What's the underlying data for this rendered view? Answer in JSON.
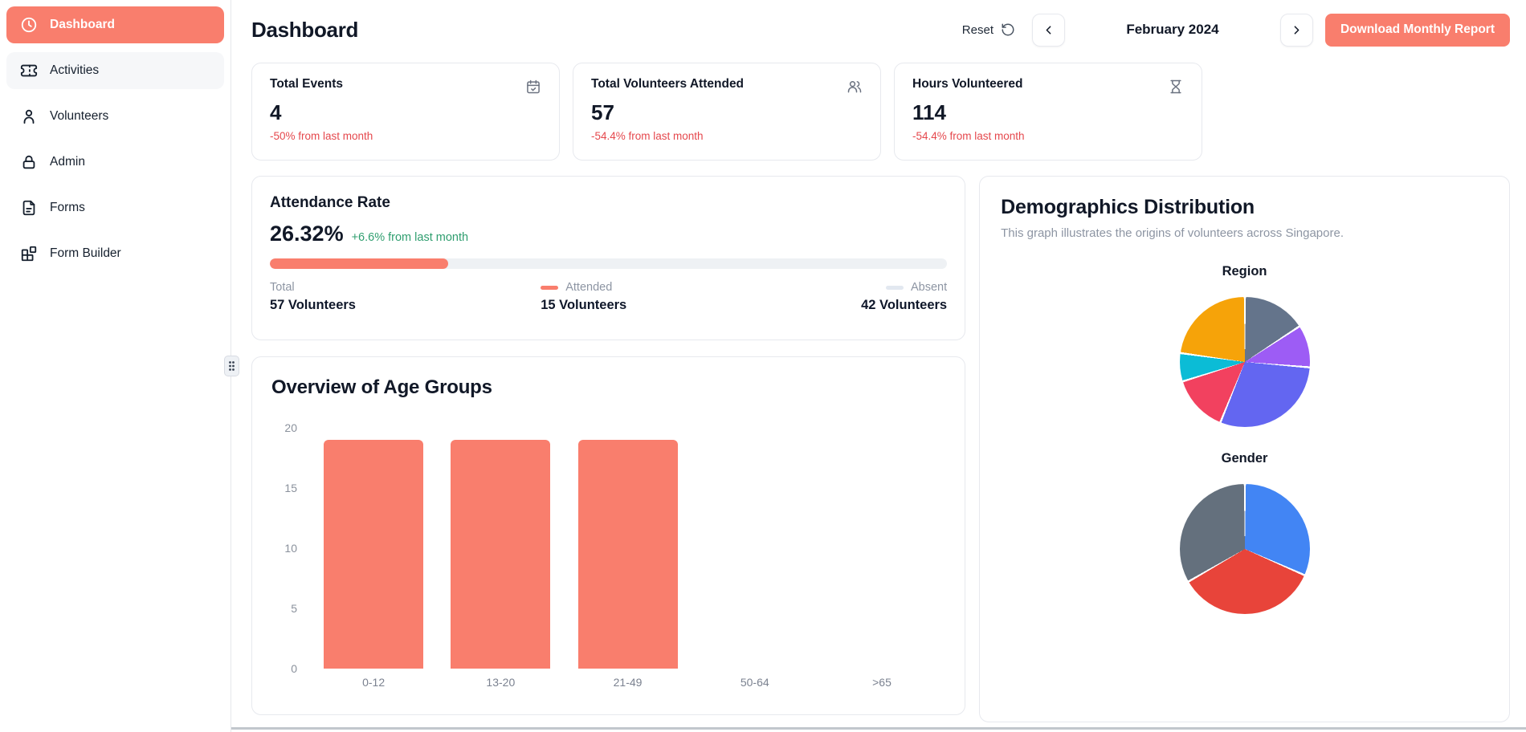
{
  "colors": {
    "accent": "#f97e6d",
    "negative_text": "#e5484d",
    "positive_text": "#2f9e6f",
    "progress_track": "#eef1f4",
    "absent_swatch": "#e2e8f0"
  },
  "sidebar": {
    "items": [
      {
        "label": "Dashboard",
        "icon": "clock-icon",
        "active": true
      },
      {
        "label": "Activities",
        "icon": "ticket-icon",
        "active": false
      },
      {
        "label": "Volunteers",
        "icon": "user-icon",
        "active": false
      },
      {
        "label": "Admin",
        "icon": "lock-icon",
        "active": false
      },
      {
        "label": "Forms",
        "icon": "file-text-icon",
        "active": false
      },
      {
        "label": "Form Builder",
        "icon": "blocks-icon",
        "active": false
      }
    ]
  },
  "header": {
    "title": "Dashboard",
    "reset_label": "Reset",
    "month_label": "February 2024",
    "download_label": "Download Monthly Report"
  },
  "stat_cards": [
    {
      "title": "Total Events",
      "value": "4",
      "change": "-50% from last month",
      "icon": "calendar-check-icon"
    },
    {
      "title": "Total Volunteers Attended",
      "value": "57",
      "change": "-54.4% from last month",
      "icon": "users-icon"
    },
    {
      "title": "Hours Volunteered",
      "value": "114",
      "change": "-54.4% from last month",
      "icon": "hourglass-icon"
    }
  ],
  "attendance": {
    "title": "Attendance Rate",
    "rate": "26.32%",
    "change": "+6.6% from last month",
    "progress_pct": 26.32,
    "legend": [
      {
        "label": "Total",
        "value": "57 Volunteers",
        "swatch": null
      },
      {
        "label": "Attended",
        "value": "15 Volunteers",
        "swatch": "#f97e6d"
      },
      {
        "label": "Absent",
        "value": "42 Volunteers",
        "swatch": "#e2e8f0"
      }
    ]
  },
  "demographics": {
    "title": "Demographics Distribution",
    "subtitle": "This graph illustrates the origins of volunteers across Singapore."
  },
  "chart_data": [
    {
      "type": "bar",
      "title": "Overview of Age Groups",
      "categories": [
        "0-12",
        "13-20",
        "21-49",
        "50-64",
        ">65"
      ],
      "values": [
        19,
        19,
        19,
        0,
        0
      ],
      "ylim": [
        0,
        20
      ],
      "yticks": [
        0,
        5,
        10,
        15,
        20
      ],
      "bar_color": "#f97e6d",
      "grid": false,
      "xlabel": "",
      "ylabel": ""
    },
    {
      "type": "pie",
      "title": "Region",
      "total": 57,
      "segments": [
        {
          "color": "#64748b",
          "value": 9
        },
        {
          "color": "#9d5cf5",
          "value": 6
        },
        {
          "color": "#6366f1",
          "value": 17
        },
        {
          "color": "#f2415f",
          "value": 8
        },
        {
          "color": "#0bbcd6",
          "value": 4
        },
        {
          "color": "#f6a309",
          "value": 13
        }
      ]
    },
    {
      "type": "pie",
      "title": "Gender",
      "total": 57,
      "segments": [
        {
          "color": "#4285f4",
          "value": 18
        },
        {
          "color": "#e8443a",
          "value": 20
        },
        {
          "color": "#64707d",
          "value": 19
        }
      ]
    }
  ]
}
